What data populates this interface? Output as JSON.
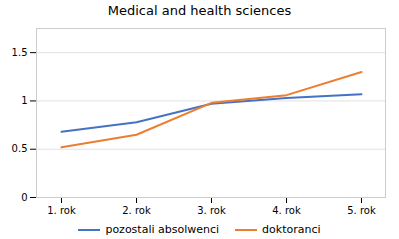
{
  "chart_data": {
    "type": "line",
    "title": "Medical and health sciences",
    "categories": [
      "1. rok",
      "2. rok",
      "3. rok",
      "4. rok",
      "5. rok"
    ],
    "series": [
      {
        "name": "pozostali absolwenci",
        "color": "#4472C4",
        "values": [
          0.68,
          0.78,
          0.97,
          1.03,
          1.07
        ]
      },
      {
        "name": "doktoranci",
        "color": "#ED7D31",
        "values": [
          0.52,
          0.65,
          0.98,
          1.06,
          1.3
        ]
      }
    ],
    "ylim": [
      0,
      1.75
    ],
    "yticks": [
      0,
      0.5,
      1,
      1.5
    ],
    "grid": true,
    "legend": "bottom"
  }
}
